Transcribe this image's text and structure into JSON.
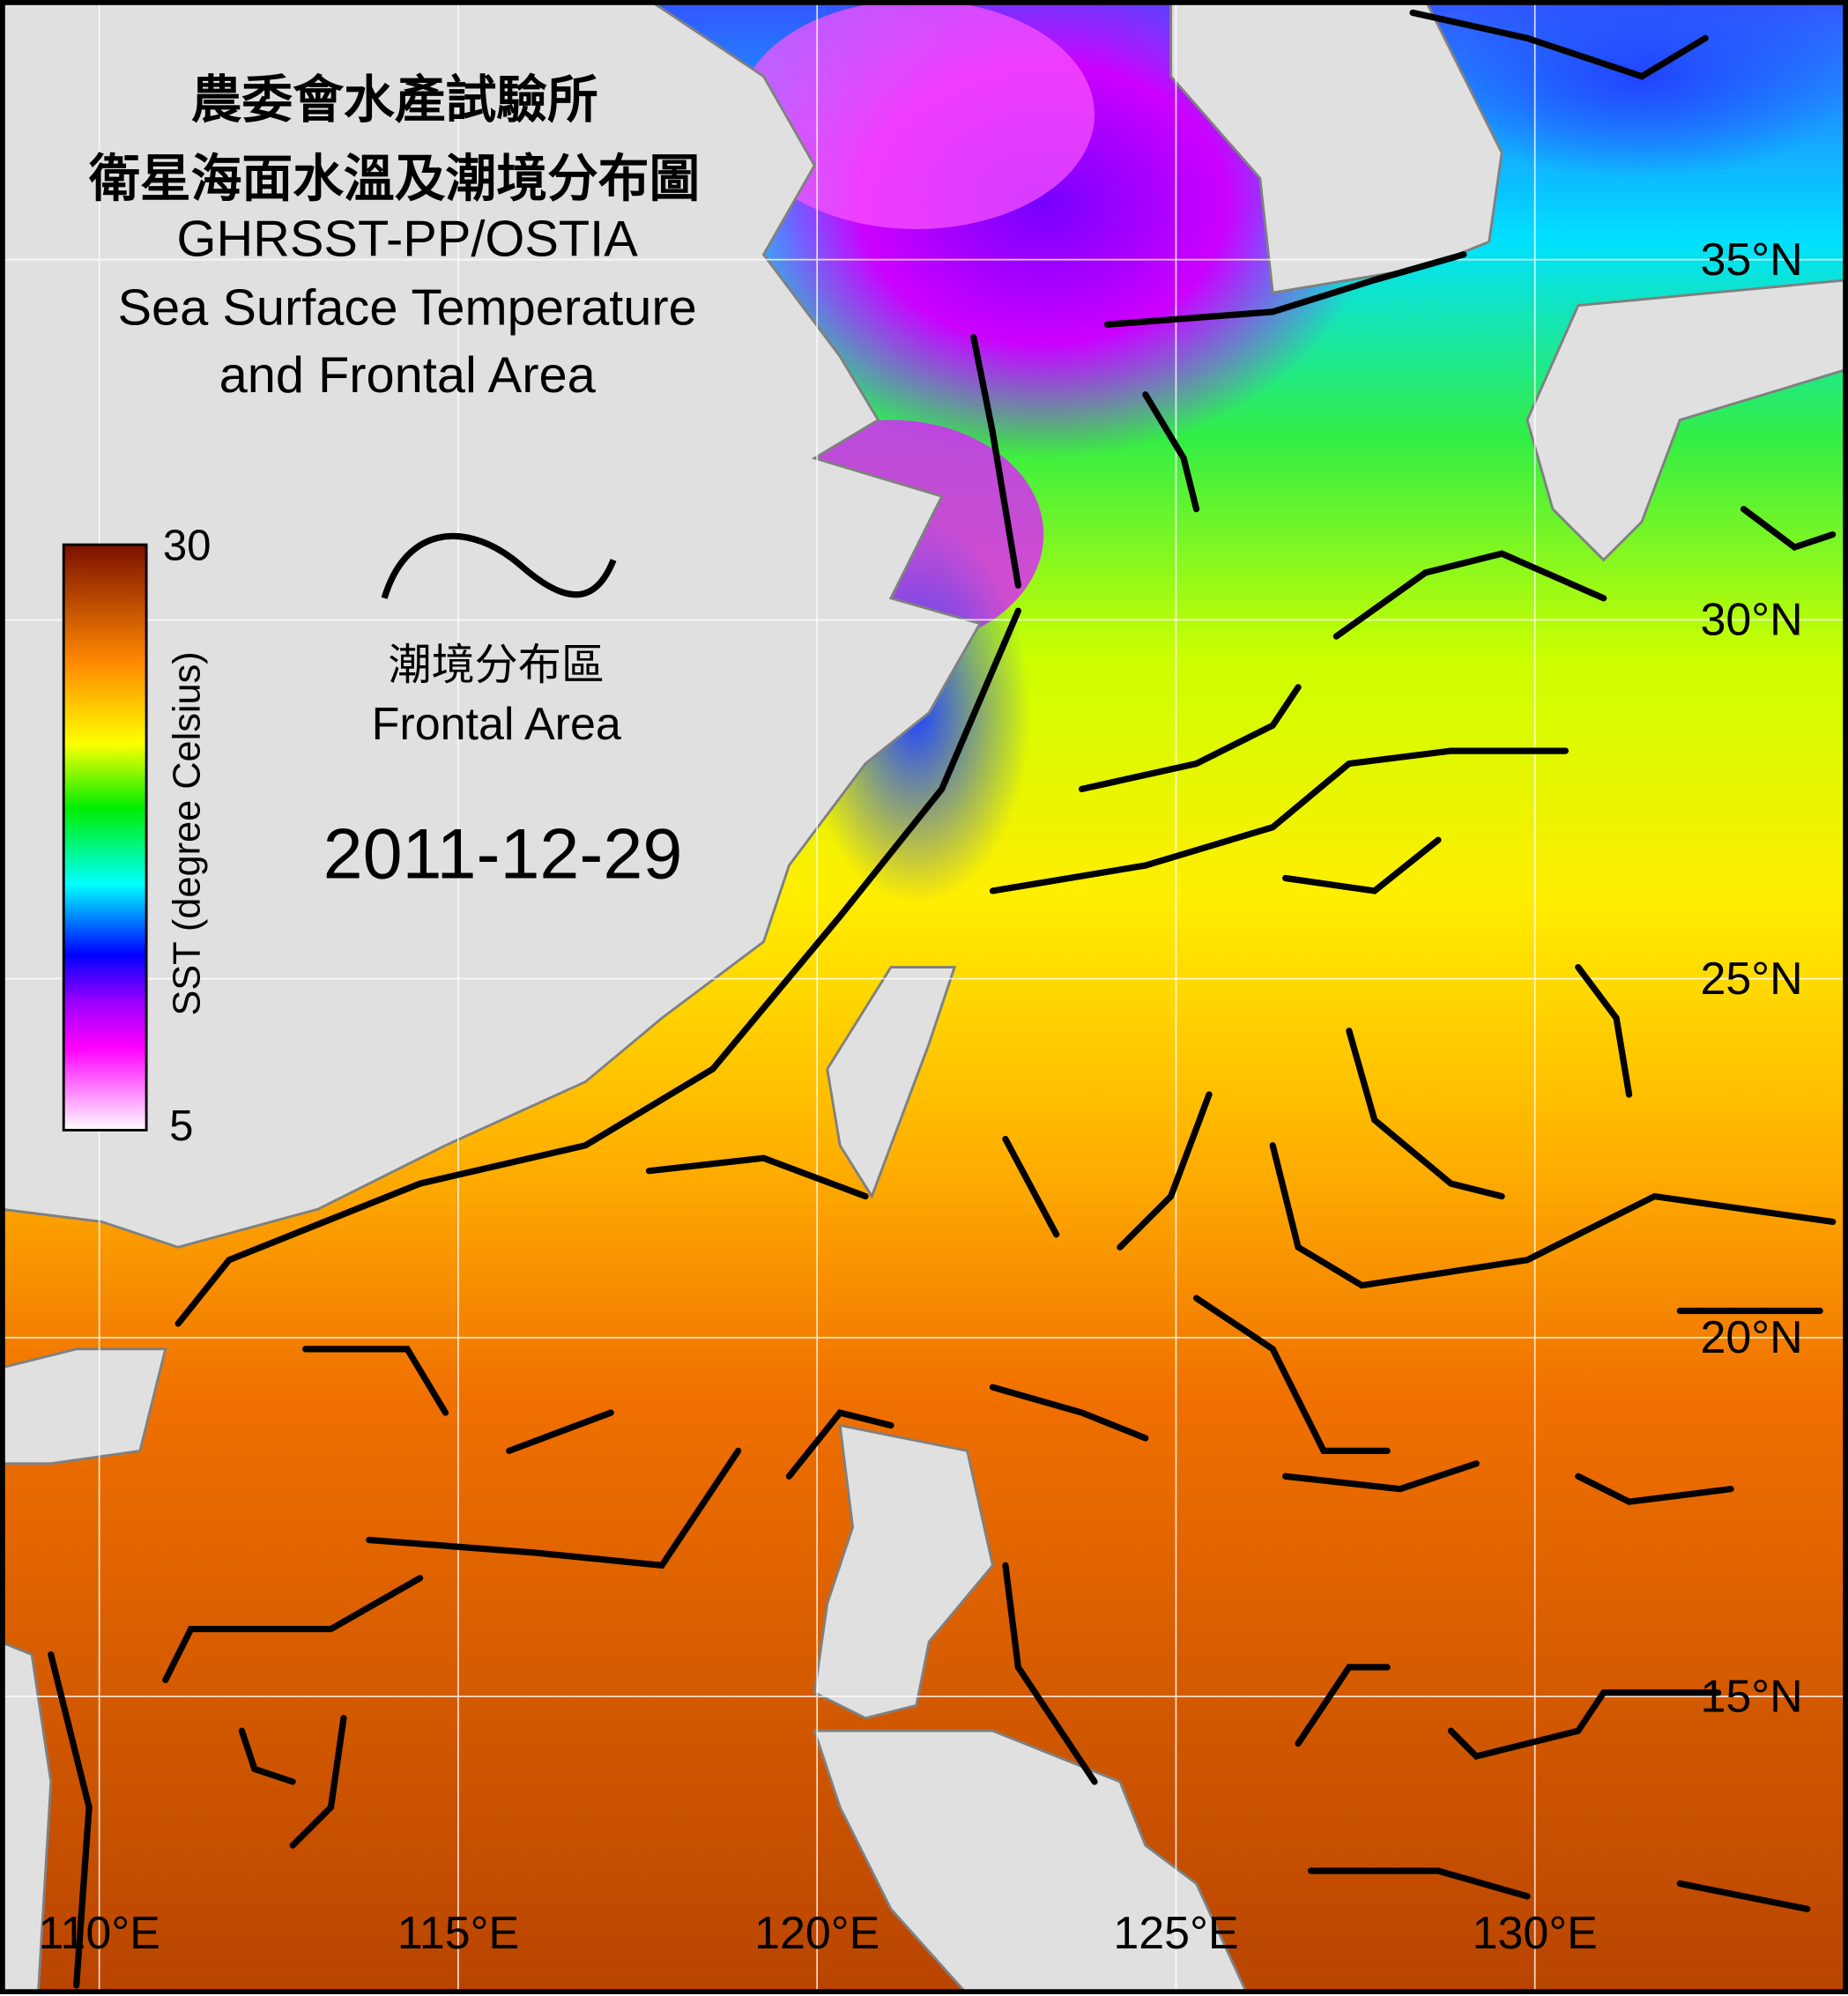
{
  "title": {
    "zh_line1": "農委會水產試驗所",
    "zh_line2": "衛星海面水溫及潮境分布圖",
    "en_line1": "GHRSST-PP/OSTIA",
    "en_line2": "Sea Surface Temperature",
    "en_line3": "and Frontal Area"
  },
  "legend": {
    "frontal_icon": "wave-line-icon",
    "frontal_zh": "潮境分布區",
    "frontal_en": "Frontal Area",
    "front_color": "#000000"
  },
  "date": "2011-12-29",
  "colorbar": {
    "label": "SST (degree Celsius)",
    "max": "30",
    "min": "5",
    "range": [
      5,
      30
    ],
    "colors": [
      "#ffffff",
      "#ff00ff",
      "#9900ff",
      "#0000ff",
      "#00ffff",
      "#00ee00",
      "#ffff00",
      "#ff8800",
      "#7a1000"
    ]
  },
  "axes": {
    "lon_labels": [
      "110°E",
      "115°E",
      "120°E",
      "125°E",
      "130°E"
    ],
    "lat_labels": [
      "35°N",
      "30°N",
      "25°N",
      "20°N",
      "15°N"
    ]
  },
  "colors": {
    "land": "#e0e0e0",
    "coastline": "#808080",
    "grid": "#ffffff"
  }
}
